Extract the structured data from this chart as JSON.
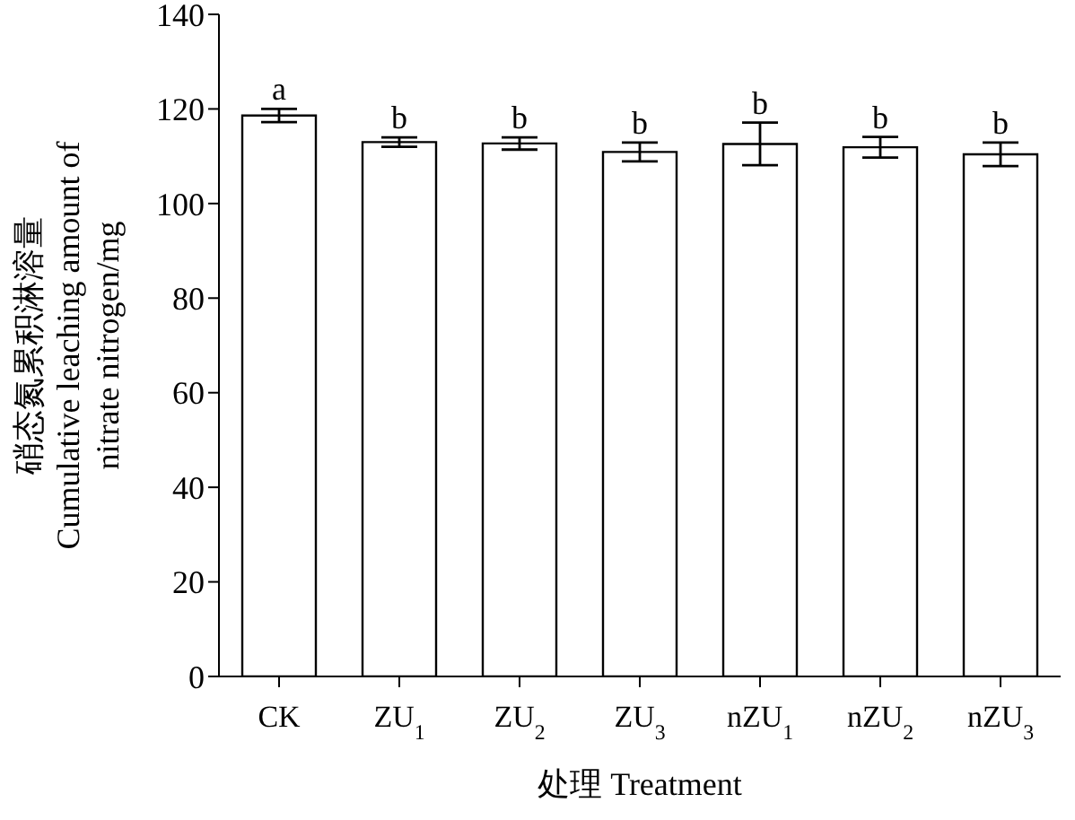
{
  "chart_data": {
    "type": "bar",
    "xlabel": "处理 Treatment",
    "ylabel": "硝态氮累积淋溶量\nCumulative leaching amount of\nnitrate nitrogen/mg",
    "categories": [
      "CK",
      "ZU$_{1}$",
      "ZU$_{2}$",
      "ZU$_{3}$",
      "nZU$_{1}$",
      "nZU$_{2}$",
      "nZU$_{3}$"
    ],
    "values": [
      118.6,
      113.0,
      112.7,
      110.9,
      112.6,
      111.9,
      110.4
    ],
    "errors": [
      1.4,
      1.0,
      1.3,
      2.0,
      4.5,
      2.2,
      2.5
    ],
    "color": "#ffffff",
    "ylim": [
      0,
      140
    ],
    "yticks": [
      0,
      20,
      40,
      60,
      80,
      100,
      120,
      140
    ],
    "annotations": [
      {
        "text": "a",
        "x": "CK",
        "y": 120.0
      },
      {
        "text": "b",
        "x": "ZU$_{1}$",
        "y": 114.0
      },
      {
        "text": "b",
        "x": "ZU$_{2}$",
        "y": 114.0
      },
      {
        "text": "b",
        "x": "ZU$_{3}$",
        "y": 112.9
      },
      {
        "text": "b",
        "x": "nZU$_{1}$",
        "y": 117.1
      },
      {
        "text": "b",
        "x": "nZU$_{2}$",
        "y": 114.1
      },
      {
        "text": "b",
        "x": "nZU$_{3}$",
        "y": 112.9
      }
    ],
    "grid": false,
    "legend": false
  }
}
